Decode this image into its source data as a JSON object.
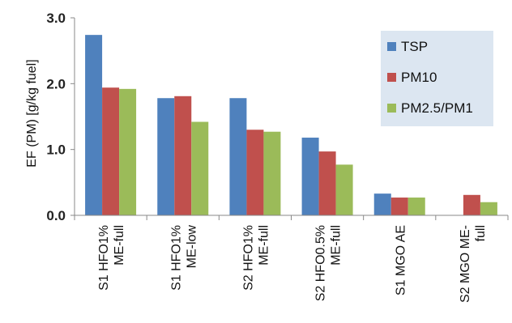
{
  "chart_data": {
    "type": "bar",
    "title": "",
    "xlabel": "",
    "ylabel": "EF (PM) [g/kg fuel]",
    "ylim": [
      0,
      3
    ],
    "yticks": [
      "0.0",
      "1.0",
      "2.0",
      "3.0"
    ],
    "grid": false,
    "legend_position": "top-right",
    "categories": [
      [
        "S1 HFO1%",
        "ME-full"
      ],
      [
        "S1 HFO1%",
        "ME-low"
      ],
      [
        "S2 HFO1%",
        "ME-full"
      ],
      [
        "S2 HFO0.5%",
        "ME-full"
      ],
      [
        "S1 MGO AE"
      ],
      [
        "S2 MGO ME-",
        "full"
      ]
    ],
    "series": [
      {
        "name": "TSP",
        "color": "#4f81bd",
        "values": [
          2.74,
          1.78,
          1.78,
          1.18,
          0.33,
          null
        ]
      },
      {
        "name": "PM10",
        "color": "#c0504d",
        "values": [
          1.94,
          1.81,
          1.3,
          0.97,
          0.27,
          0.31
        ]
      },
      {
        "name": "PM2.5/PM1",
        "color": "#9bbb59",
        "values": [
          1.92,
          1.42,
          1.27,
          0.77,
          0.27,
          0.2
        ]
      }
    ]
  }
}
